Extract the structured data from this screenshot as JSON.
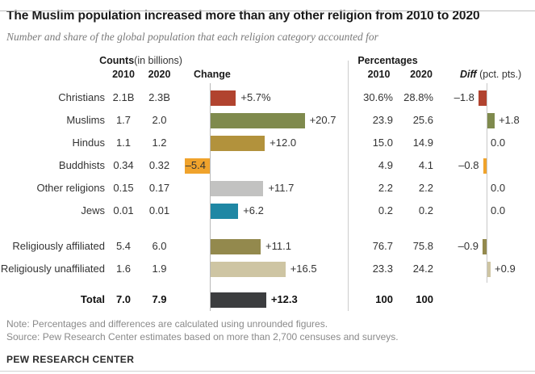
{
  "title": "The Muslim population increased more than any other religion from 2010 to 2020",
  "subtitle": "Number and share of the global population that each religion category accounted for",
  "header": {
    "counts_bold": "Counts",
    "counts_rest": " (in billions)",
    "counts_2010": "2010",
    "counts_2020": "2020",
    "change": "Change",
    "percentages": "Percentages",
    "pct_2010": "2010",
    "pct_2020": "2020",
    "diff_bold": "Diff",
    "diff_rest": " (pct. pts.)"
  },
  "chart_data": {
    "type": "bar",
    "title": "The Muslim population increased more than any other religion from 2010 to 2020",
    "change_unit": "% change 2010-2020",
    "diff_unit": "percentage point difference 2010-2020",
    "rows": [
      {
        "label": "Christians",
        "count_2010": "2.1B",
        "count_2020": "2.3B",
        "change_pct": 5.7,
        "change_label": "+5.7%",
        "pct_2010": "30.6%",
        "pct_2020": "28.8%",
        "diff": -1.8,
        "diff_label": "–1.8",
        "color": "#b1432f",
        "bold": false,
        "change_label_inside": false,
        "spacer_before": 0
      },
      {
        "label": "Muslims",
        "count_2010": "1.7",
        "count_2020": "2.0",
        "change_pct": 20.7,
        "change_label": "+20.7",
        "pct_2010": "23.9",
        "pct_2020": "25.6",
        "diff": 1.8,
        "diff_label": "+1.8",
        "color": "#7f8a4d",
        "bold": false,
        "change_label_inside": false,
        "spacer_before": 0
      },
      {
        "label": "Hindus",
        "count_2010": "1.1",
        "count_2020": "1.2",
        "change_pct": 12.0,
        "change_label": "+12.0",
        "pct_2010": "15.0",
        "pct_2020": "14.9",
        "diff": 0,
        "diff_label": "0.0",
        "color": "#b2923c",
        "bold": false,
        "change_label_inside": false,
        "spacer_before": 0
      },
      {
        "label": "Buddhists",
        "count_2010": "0.34",
        "count_2020": "0.32",
        "change_pct": -5.4,
        "change_label": "–5.4",
        "pct_2010": "4.9",
        "pct_2020": "4.1",
        "diff": -0.8,
        "diff_label": "–0.8",
        "color": "#f0a32c",
        "bold": false,
        "change_label_inside": true,
        "spacer_before": 0
      },
      {
        "label": "Other religions",
        "count_2010": "0.15",
        "count_2020": "0.17",
        "change_pct": 11.7,
        "change_label": "+11.7",
        "pct_2010": "2.2",
        "pct_2020": "2.2",
        "diff": 0,
        "diff_label": "0.0",
        "color": "#c2c2c1",
        "bold": false,
        "change_label_inside": false,
        "spacer_before": 0
      },
      {
        "label": "Jews",
        "count_2010": "0.01",
        "count_2020": "0.01",
        "change_pct": 6.2,
        "change_label": "+6.2",
        "pct_2010": "0.2",
        "pct_2020": "0.2",
        "diff": 0,
        "diff_label": "0.0",
        "color": "#1f87a4",
        "bold": false,
        "change_label_inside": false,
        "spacer_before": 0
      },
      {
        "label": "Religiously affiliated",
        "count_2010": "5.4",
        "count_2020": "6.0",
        "change_pct": 11.1,
        "change_label": "+11.1",
        "pct_2010": "76.7",
        "pct_2020": "75.8",
        "diff": -0.9,
        "diff_label": "–0.9",
        "color": "#93894d",
        "bold": false,
        "change_label_inside": false,
        "spacer_before": 16
      },
      {
        "label": "Religiously unaffiliated",
        "count_2010": "1.6",
        "count_2020": "1.9",
        "change_pct": 16.5,
        "change_label": "+16.5",
        "pct_2010": "23.3",
        "pct_2020": "24.2",
        "diff": 0.9,
        "diff_label": "+0.9",
        "color": "#cec5a3",
        "bold": false,
        "change_label_inside": false,
        "spacer_before": 0
      },
      {
        "label": "Total",
        "count_2010": "7.0",
        "count_2020": "7.9",
        "change_pct": 12.3,
        "change_label": "+12.3",
        "pct_2010": "100",
        "pct_2020": "100",
        "diff": null,
        "diff_label": null,
        "color": "#3c3d3f",
        "bold": true,
        "change_label_inside": false,
        "spacer_before": 10
      }
    ]
  },
  "footer": {
    "note": "Note: Percentages and differences are calculated using unrounded figures.",
    "source": "Source: Pew Research Center estimates based on more than 2,700 censuses and surveys.",
    "brand": "PEW RESEARCH CENTER"
  }
}
